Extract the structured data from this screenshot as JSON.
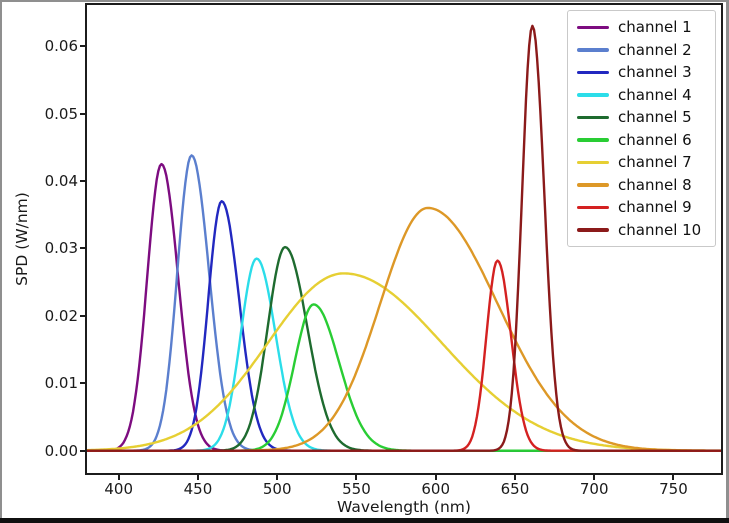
{
  "chart_data": {
    "type": "line",
    "title": "",
    "xlabel": "Wavelength (nm)",
    "ylabel": "SPD (W/nm)",
    "xlim": [
      380,
      780
    ],
    "ylim": [
      -0.0033,
      0.0661
    ],
    "xticks": [
      400,
      450,
      500,
      550,
      600,
      650,
      700,
      750
    ],
    "xtick_labels": [
      "400",
      "450",
      "500",
      "550",
      "600",
      "650",
      "700",
      "750"
    ],
    "yticks": [
      0,
      0.01,
      0.02,
      0.03,
      0.04,
      0.05,
      0.06
    ],
    "ytick_labels": [
      "0.00",
      "0.01",
      "0.02",
      "0.03",
      "0.04",
      "0.05",
      "0.06"
    ],
    "grid": false,
    "legend_position": "upper right",
    "curve_model": "spd(nm) = peak_spd * exp(-(nm - peak_nm)^2 / (2 * sigma^2)); sigma = sigma_left_nm for nm < peak_nm, else sigma_right_nm; parameters estimated from the plotted curves",
    "series": [
      {
        "name": "channel 1",
        "color": "#7d0c80",
        "peak_nm": 427,
        "peak_spd": 0.0425,
        "sigma_left_nm": 9,
        "sigma_right_nm": 10.5
      },
      {
        "name": "channel 2",
        "color": "#5b7fce",
        "peak_nm": 446,
        "peak_spd": 0.0438,
        "sigma_left_nm": 9,
        "sigma_right_nm": 11
      },
      {
        "name": "channel 3",
        "color": "#2228c0",
        "peak_nm": 465,
        "peak_spd": 0.037,
        "sigma_left_nm": 8.5,
        "sigma_right_nm": 11
      },
      {
        "name": "channel 4",
        "color": "#2bdde9",
        "peak_nm": 487,
        "peak_spd": 0.0285,
        "sigma_left_nm": 10,
        "sigma_right_nm": 12
      },
      {
        "name": "channel 5",
        "color": "#1e6b2f",
        "peak_nm": 505,
        "peak_spd": 0.0302,
        "sigma_left_nm": 11,
        "sigma_right_nm": 14
      },
      {
        "name": "channel 6",
        "color": "#29cd34",
        "peak_nm": 523,
        "peak_spd": 0.0217,
        "sigma_left_nm": 12,
        "sigma_right_nm": 16
      },
      {
        "name": "channel 7",
        "color": "#e6cf33",
        "peak_nm": 542,
        "peak_spd": 0.0263,
        "sigma_left_nm": 48,
        "sigma_right_nm": 62
      },
      {
        "name": "channel 8",
        "color": "#dd9827",
        "peak_nm": 595,
        "peak_spd": 0.036,
        "sigma_left_nm": 30,
        "sigma_right_nm": 44
      },
      {
        "name": "channel 9",
        "color": "#d42121",
        "peak_nm": 639,
        "peak_spd": 0.0282,
        "sigma_left_nm": 7,
        "sigma_right_nm": 8.5
      },
      {
        "name": "channel 10",
        "color": "#8b1a1a",
        "peak_nm": 661,
        "peak_spd": 0.063,
        "sigma_left_nm": 6.5,
        "sigma_right_nm": 7.5
      }
    ]
  },
  "figure": {
    "background": "#ffffff",
    "axis_color": "#1c1c1c",
    "outer_border_color": "#8f8f8f",
    "bottom_bar_color": "#101010",
    "legend_border_color": "#c9c9c9"
  }
}
